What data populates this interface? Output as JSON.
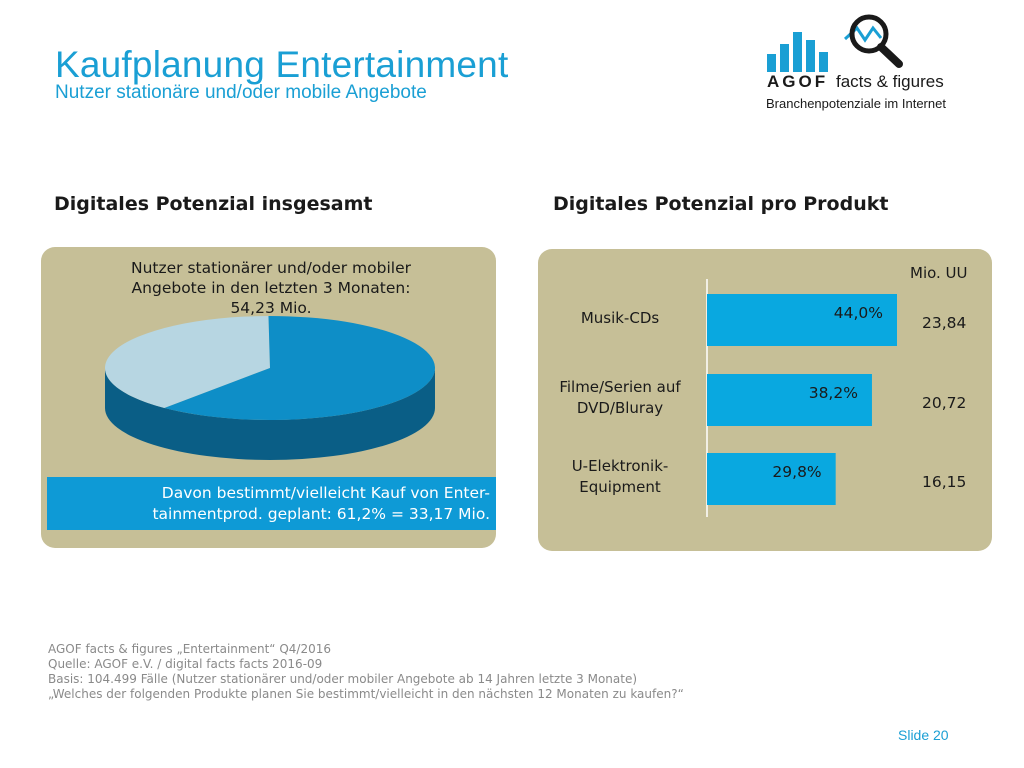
{
  "header": {
    "title": "Kaufplanung Entertainment",
    "subtitle": "Nutzer stationäre und/oder mobile Angebote"
  },
  "logo": {
    "brand": "AGOF",
    "product": "facts & figures",
    "tagline": "Branchenpotenziale im Internet",
    "bar_color": "#1a9fd4"
  },
  "left_panel": {
    "heading": "Digitales Potenzial insgesamt",
    "caption_line1": "Nutzer stationärer und/oder mobiler",
    "caption_line2": "Angebote in den letzten 3 Monaten:",
    "caption_line3": "54,23 Mio.",
    "callout_line1": "Davon bestimmt/vielleicht Kauf von Enter-",
    "callout_line2": "tainmentprod. geplant: 61,2% = 33,17 Mio."
  },
  "right_panel": {
    "heading": "Digitales Potenzial pro Produkt",
    "unit_label": "Mio. UU"
  },
  "chart_data": [
    {
      "type": "pie",
      "slices": [
        {
          "label": "Davon bestimmt/vielleicht Kauf von Entertainmentprod. geplant",
          "value": 61.2,
          "color": "#0e8ec7"
        },
        {
          "label": "",
          "value": 38.8,
          "color": "#b7d6e2"
        }
      ],
      "total_label": "54,23 Mio."
    },
    {
      "type": "bar",
      "orientation": "horizontal",
      "categories": [
        {
          "line1": "Musik-CDs",
          "line2": ""
        },
        {
          "line1": "Filme/Serien auf",
          "line2": "DVD/Bluray"
        },
        {
          "line1": "U-Elektronik-",
          "line2": "Equipment"
        }
      ],
      "values": [
        44.0,
        38.2,
        29.8
      ],
      "value_labels": [
        "44,0%",
        "38,2%",
        "29,8%"
      ],
      "mio_uu": [
        "23,84",
        "20,72",
        "16,15"
      ],
      "bar_color": "#09a8e0",
      "xlim": [
        0,
        50
      ]
    }
  ],
  "footer": {
    "line1": "AGOF facts & figures „Entertainment“ Q4/2016",
    "line2": "Quelle: AGOF e.V. / digital facts facts 2016-09",
    "line3": "Basis: 104.499 Fälle (Nutzer stationärer und/oder mobiler Angebote ab 14 Jahren letzte 3 Monate)",
    "line4": "„Welches der folgenden Produkte planen Sie bestimmt/vielleicht in den nächsten 12 Monaten zu kaufen?“"
  },
  "slide_number": "Slide 20"
}
